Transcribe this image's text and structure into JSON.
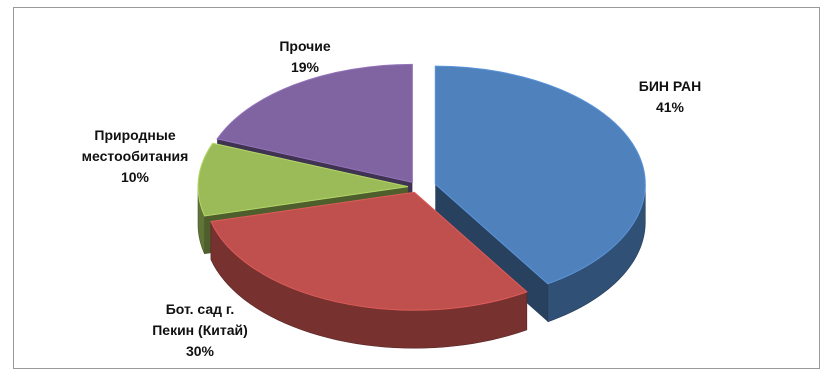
{
  "chart_data": {
    "type": "pie",
    "style": "3d-exploded",
    "title": "",
    "slices": [
      {
        "name": "БИН РАН",
        "value": 41,
        "value_label": "41%",
        "color": "#4f81bd"
      },
      {
        "name": "Бот. сад г. Пекин (Китай)",
        "name_lines": [
          "Бот. сад г.",
          "Пекин (Китай)"
        ],
        "value": 30,
        "value_label": "30%",
        "color": "#c0504d"
      },
      {
        "name": "Природные местообитания",
        "name_lines": [
          "Природные",
          "местообитания"
        ],
        "value": 10,
        "value_label": "10%",
        "color": "#9bbb59"
      },
      {
        "name": "Прочие",
        "value": 19,
        "value_label": "19%",
        "color": "#8064a2"
      }
    ]
  }
}
